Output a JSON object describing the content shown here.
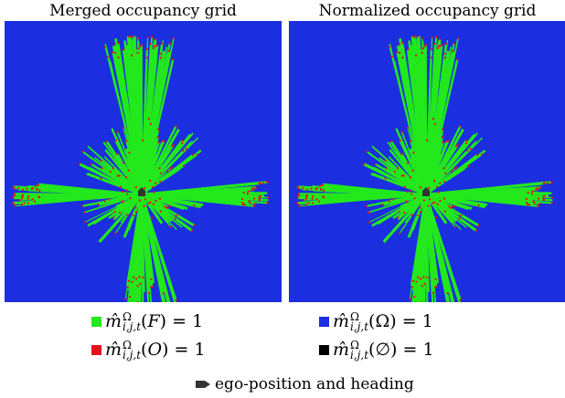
{
  "titles": {
    "left": "Merged occupancy grid",
    "right": "Normalized occupancy grid"
  },
  "colors": {
    "unknown": "#1b2ee0",
    "free": "#22e81c",
    "occupied": "#e8101a",
    "empty_set": "#000000",
    "ego": "#333333"
  },
  "legend": {
    "free": {
      "symbol": "m̂",
      "sup": "Ω",
      "sub": "i,j,t",
      "arg": "F",
      "rhs": "= 1"
    },
    "occupied": {
      "symbol": "m̂",
      "sup": "Ω",
      "sub": "i,j,t",
      "arg": "O",
      "rhs": "= 1"
    },
    "omega": {
      "symbol": "m̂",
      "sup": "Ω",
      "sub": "i,j,t",
      "arg": "Ω",
      "rhs": "= 1"
    },
    "empty": {
      "symbol": "m̂",
      "sup": "Ω",
      "sub": "i,j,t",
      "arg": "∅",
      "rhs": "= 1"
    },
    "ego": "ego-position and heading"
  }
}
